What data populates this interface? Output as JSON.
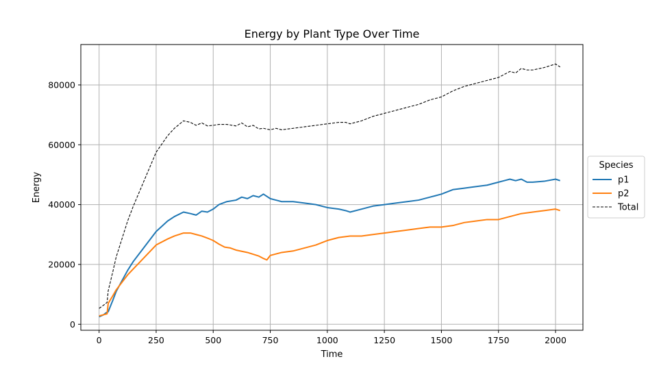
{
  "chart_data": {
    "type": "line",
    "title": "Energy by Plant Type Over Time",
    "xlabel": "Time",
    "ylabel": "Energy",
    "xlim": [
      -80,
      2120
    ],
    "ylim": [
      -2000,
      93500
    ],
    "xticks": [
      0,
      250,
      500,
      750,
      1000,
      1250,
      1500,
      1750,
      2000
    ],
    "yticks": [
      0,
      20000,
      40000,
      60000,
      80000
    ],
    "grid": true,
    "legend": {
      "title": "Species",
      "placement": "center right, outside plot"
    },
    "series": [
      {
        "name": "p1",
        "color": "#1f77b4",
        "style": "solid",
        "points": [
          [
            0,
            2500
          ],
          [
            20,
            3200
          ],
          [
            30,
            3800
          ],
          [
            40,
            4200
          ],
          [
            60,
            8000
          ],
          [
            75,
            11000
          ],
          [
            100,
            14500
          ],
          [
            125,
            18000
          ],
          [
            150,
            21000
          ],
          [
            200,
            26000
          ],
          [
            250,
            31000
          ],
          [
            300,
            34500
          ],
          [
            330,
            36000
          ],
          [
            370,
            37500
          ],
          [
            400,
            37000
          ],
          [
            425,
            36500
          ],
          [
            450,
            37800
          ],
          [
            475,
            37500
          ],
          [
            500,
            38500
          ],
          [
            525,
            40000
          ],
          [
            560,
            41000
          ],
          [
            600,
            41500
          ],
          [
            625,
            42500
          ],
          [
            650,
            42000
          ],
          [
            675,
            43000
          ],
          [
            700,
            42500
          ],
          [
            720,
            43500
          ],
          [
            750,
            42000
          ],
          [
            775,
            41500
          ],
          [
            800,
            41000
          ],
          [
            850,
            41000
          ],
          [
            900,
            40500
          ],
          [
            950,
            40000
          ],
          [
            1000,
            39000
          ],
          [
            1050,
            38500
          ],
          [
            1080,
            38000
          ],
          [
            1100,
            37500
          ],
          [
            1150,
            38500
          ],
          [
            1200,
            39500
          ],
          [
            1250,
            40000
          ],
          [
            1300,
            40500
          ],
          [
            1350,
            41000
          ],
          [
            1400,
            41500
          ],
          [
            1450,
            42500
          ],
          [
            1500,
            43500
          ],
          [
            1550,
            45000
          ],
          [
            1600,
            45500
          ],
          [
            1650,
            46000
          ],
          [
            1700,
            46500
          ],
          [
            1750,
            47500
          ],
          [
            1775,
            48000
          ],
          [
            1800,
            48500
          ],
          [
            1825,
            48000
          ],
          [
            1850,
            48500
          ],
          [
            1875,
            47500
          ],
          [
            1900,
            47500
          ],
          [
            1950,
            47800
          ],
          [
            2000,
            48500
          ],
          [
            2020,
            48000
          ]
        ]
      },
      {
        "name": "p2",
        "color": "#ff7f0e",
        "style": "solid",
        "points": [
          [
            0,
            2800
          ],
          [
            20,
            3200
          ],
          [
            35,
            3500
          ],
          [
            40,
            7000
          ],
          [
            60,
            9500
          ],
          [
            75,
            11500
          ],
          [
            100,
            14000
          ],
          [
            125,
            16500
          ],
          [
            150,
            18500
          ],
          [
            200,
            22500
          ],
          [
            250,
            26500
          ],
          [
            300,
            28500
          ],
          [
            330,
            29500
          ],
          [
            370,
            30500
          ],
          [
            400,
            30500
          ],
          [
            425,
            30000
          ],
          [
            450,
            29500
          ],
          [
            475,
            28800
          ],
          [
            500,
            28000
          ],
          [
            525,
            26800
          ],
          [
            550,
            25800
          ],
          [
            575,
            25500
          ],
          [
            600,
            24800
          ],
          [
            650,
            24000
          ],
          [
            700,
            22800
          ],
          [
            720,
            22000
          ],
          [
            735,
            21500
          ],
          [
            750,
            23000
          ],
          [
            800,
            24000
          ],
          [
            850,
            24500
          ],
          [
            900,
            25500
          ],
          [
            950,
            26500
          ],
          [
            1000,
            28000
          ],
          [
            1050,
            29000
          ],
          [
            1100,
            29500
          ],
          [
            1150,
            29500
          ],
          [
            1200,
            30000
          ],
          [
            1250,
            30500
          ],
          [
            1300,
            31000
          ],
          [
            1350,
            31500
          ],
          [
            1400,
            32000
          ],
          [
            1450,
            32500
          ],
          [
            1500,
            32500
          ],
          [
            1550,
            33000
          ],
          [
            1600,
            34000
          ],
          [
            1650,
            34500
          ],
          [
            1700,
            35000
          ],
          [
            1750,
            35000
          ],
          [
            1800,
            36000
          ],
          [
            1850,
            37000
          ],
          [
            1900,
            37500
          ],
          [
            1950,
            38000
          ],
          [
            2000,
            38500
          ],
          [
            2020,
            38000
          ]
        ]
      },
      {
        "name": "Total",
        "color": "#000000",
        "style": "dashed",
        "points": [
          [
            0,
            5300
          ],
          [
            20,
            6400
          ],
          [
            35,
            7300
          ],
          [
            40,
            11200
          ],
          [
            60,
            17500
          ],
          [
            75,
            22500
          ],
          [
            100,
            28500
          ],
          [
            125,
            34500
          ],
          [
            150,
            39500
          ],
          [
            200,
            48500
          ],
          [
            250,
            57500
          ],
          [
            300,
            63000
          ],
          [
            330,
            65500
          ],
          [
            370,
            68000
          ],
          [
            400,
            67500
          ],
          [
            425,
            66500
          ],
          [
            450,
            67300
          ],
          [
            475,
            66300
          ],
          [
            500,
            66500
          ],
          [
            525,
            66800
          ],
          [
            560,
            66800
          ],
          [
            600,
            66300
          ],
          [
            625,
            67300
          ],
          [
            650,
            66000
          ],
          [
            675,
            66500
          ],
          [
            700,
            65300
          ],
          [
            720,
            65500
          ],
          [
            750,
            65000
          ],
          [
            775,
            65500
          ],
          [
            800,
            65000
          ],
          [
            850,
            65500
          ],
          [
            900,
            66000
          ],
          [
            950,
            66500
          ],
          [
            1000,
            67000
          ],
          [
            1050,
            67500
          ],
          [
            1080,
            67500
          ],
          [
            1100,
            67000
          ],
          [
            1150,
            68000
          ],
          [
            1200,
            69500
          ],
          [
            1250,
            70500
          ],
          [
            1300,
            71500
          ],
          [
            1350,
            72500
          ],
          [
            1400,
            73500
          ],
          [
            1450,
            75000
          ],
          [
            1500,
            76000
          ],
          [
            1550,
            78000
          ],
          [
            1600,
            79500
          ],
          [
            1650,
            80500
          ],
          [
            1700,
            81500
          ],
          [
            1750,
            82500
          ],
          [
            1775,
            83500
          ],
          [
            1800,
            84500
          ],
          [
            1825,
            84000
          ],
          [
            1850,
            85500
          ],
          [
            1875,
            85000
          ],
          [
            1900,
            85000
          ],
          [
            1950,
            85800
          ],
          [
            2000,
            87000
          ],
          [
            2020,
            86000
          ]
        ]
      }
    ]
  }
}
